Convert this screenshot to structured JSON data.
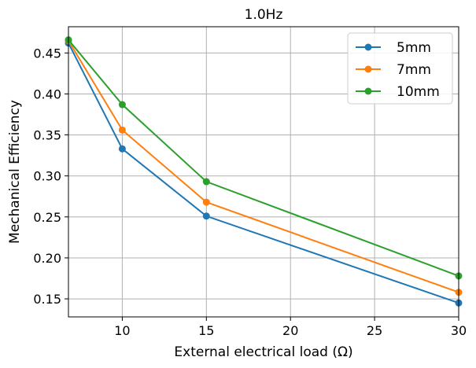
{
  "chart_data": {
    "type": "line",
    "title": "1.0Hz",
    "xlabel": "External electrical load (Ω)",
    "ylabel": "Mechanical Efficiency",
    "xlim": [
      6.8,
      30
    ],
    "ylim": [
      0.128,
      0.482
    ],
    "x_ticks": [
      10,
      15,
      20,
      25,
      30
    ],
    "x_tick_labels": [
      "10",
      "15",
      "20",
      "25",
      "30"
    ],
    "y_ticks": [
      0.15,
      0.2,
      0.25,
      0.3,
      0.35,
      0.4,
      0.45
    ],
    "y_tick_labels": [
      "0.15",
      "0.20",
      "0.25",
      "0.30",
      "0.35",
      "0.40",
      "0.45"
    ],
    "grid": true,
    "legend_position": "top-right",
    "x": [
      6.8,
      10,
      15,
      30
    ],
    "series": [
      {
        "name": "5mm",
        "color": "#1f77b4",
        "values": [
          0.462,
          0.333,
          0.251,
          0.145
        ]
      },
      {
        "name": "7mm",
        "color": "#ff7f0e",
        "values": [
          0.465,
          0.356,
          0.268,
          0.158
        ]
      },
      {
        "name": "10mm",
        "color": "#2ca02c",
        "values": [
          0.466,
          0.387,
          0.293,
          0.178
        ]
      }
    ]
  }
}
